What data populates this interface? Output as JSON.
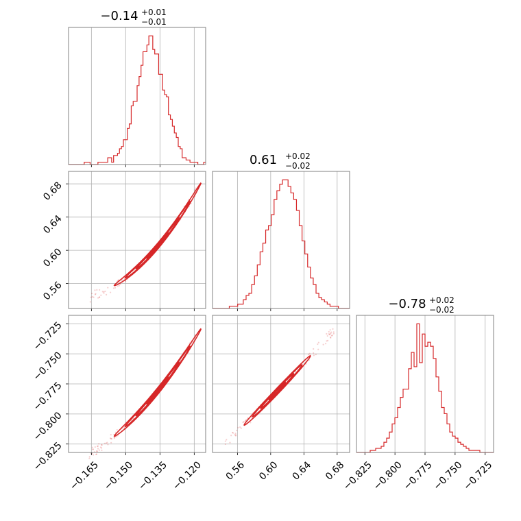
{
  "accent_color": "#d62728",
  "chart_data": {
    "type": "corner",
    "parameters": [
      {
        "title": {
          "median": "−0.14",
          "plus": "+0.01",
          "minus": "−0.01"
        },
        "range": [
          -0.175,
          -0.115
        ],
        "ticks": [
          -0.165,
          -0.15,
          -0.135,
          -0.12
        ],
        "tick_labels": [
          "−0.165",
          "−0.150",
          "−0.135",
          "−0.120"
        ],
        "hist_counts": [
          0,
          0,
          0,
          0,
          0,
          0,
          0,
          0,
          1,
          1,
          1,
          0,
          0,
          0,
          0,
          1,
          1,
          1,
          1,
          1,
          3,
          3,
          1,
          4,
          4,
          5,
          7,
          8,
          11,
          11,
          16,
          18,
          26,
          28,
          28,
          35,
          39,
          44,
          50,
          50,
          53,
          57,
          57,
          51,
          49,
          49,
          40,
          40,
          33,
          31,
          30,
          22,
          20,
          17,
          14,
          12,
          8,
          7,
          3,
          3,
          2,
          2,
          1,
          1,
          1,
          1,
          0,
          0,
          0,
          1
        ]
      },
      {
        "title": {
          "median": "0.61",
          "plus": "+0.02",
          "minus": "−0.02"
        },
        "range": [
          0.53,
          0.695
        ],
        "ticks": [
          0.56,
          0.6,
          0.64,
          0.68
        ],
        "tick_labels": [
          "0.56",
          "0.60",
          "0.64",
          "0.68"
        ],
        "hist_counts": [
          0,
          0,
          0,
          0,
          0,
          0,
          1,
          1,
          1,
          2,
          2,
          4,
          6,
          7,
          11,
          15,
          20,
          26,
          30,
          36,
          38,
          43,
          50,
          54,
          57,
          59,
          59,
          56,
          53,
          50,
          45,
          38,
          31,
          25,
          19,
          14,
          11,
          7,
          5,
          4,
          3,
          2,
          1,
          1,
          1,
          0,
          0,
          0,
          0
        ]
      },
      {
        "title": {
          "median": "−0.78",
          "plus": "+0.02",
          "minus": "−0.02"
        },
        "range": [
          -0.832,
          -0.718
        ],
        "ticks": [
          -0.825,
          -0.8,
          -0.775,
          -0.75,
          -0.725
        ],
        "tick_labels": [
          "−0.825",
          "−0.800",
          "−0.775",
          "−0.750",
          "−0.725"
        ],
        "hist_counts": [
          0,
          0,
          0,
          0,
          0,
          1,
          1,
          2,
          2,
          3,
          5,
          7,
          10,
          14,
          17,
          22,
          27,
          31,
          31,
          41,
          49,
          42,
          63,
          44,
          58,
          52,
          54,
          52,
          46,
          37,
          30,
          22,
          19,
          14,
          10,
          8,
          7,
          5,
          4,
          3,
          2,
          1,
          1,
          1,
          1,
          0,
          0,
          0,
          0,
          0
        ]
      }
    ],
    "correlations": [
      {
        "x": 0,
        "y": 1,
        "slope": 3.25,
        "x_span": [
          -0.166,
          -0.119
        ]
      },
      {
        "x": 0,
        "y": 2,
        "slope": 2.35,
        "x_span": [
          -0.166,
          -0.119
        ]
      },
      {
        "x": 1,
        "y": 2,
        "slope": 0.72,
        "x_span": [
          0.545,
          0.678
        ]
      }
    ],
    "grid": true,
    "xlabel": "",
    "ylabel": ""
  }
}
